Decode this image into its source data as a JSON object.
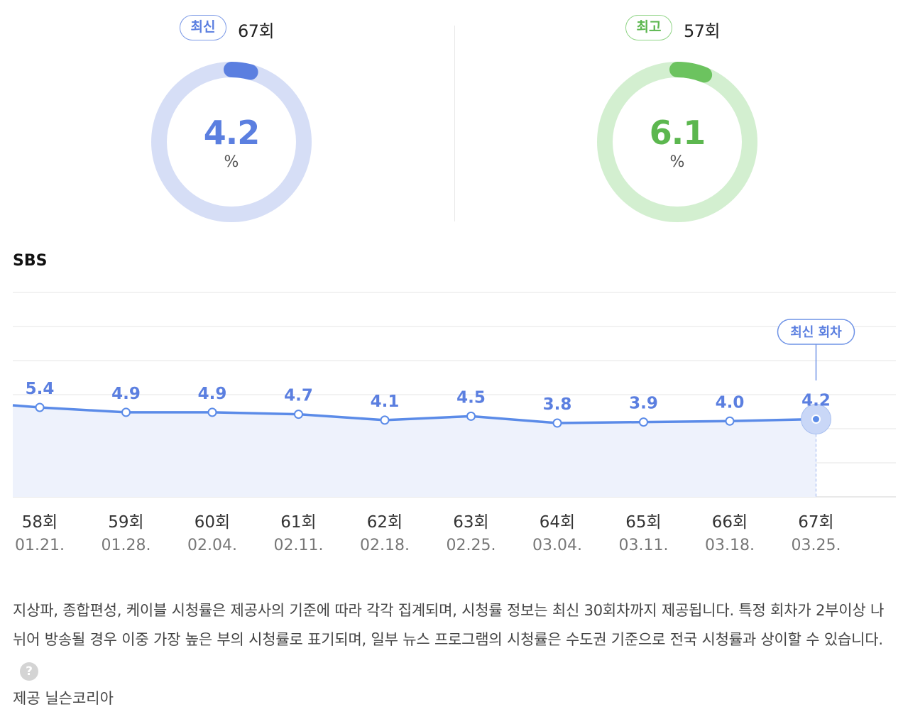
{
  "summary": {
    "latest": {
      "badge": "최신",
      "episode": "67회",
      "value": "4.2",
      "unit": "%",
      "percent": 4.2,
      "color": "#5b7fe0",
      "track": "#d6def6"
    },
    "best": {
      "badge": "최고",
      "episode": "57회",
      "value": "6.1",
      "unit": "%",
      "percent": 6.1,
      "color": "#6cc35f",
      "track": "#d3efd0"
    }
  },
  "channel": "SBS",
  "chart_data": {
    "type": "area",
    "series": [
      {
        "values": [
          5.4,
          4.9,
          4.9,
          4.7,
          4.1,
          4.5,
          3.8,
          3.9,
          4.0,
          4.2
        ]
      }
    ],
    "categories": [
      "58회",
      "59회",
      "60회",
      "61회",
      "62회",
      "63회",
      "64회",
      "65회",
      "66회",
      "67회"
    ],
    "dates": [
      "01.21.",
      "01.28.",
      "02.04.",
      "02.11.",
      "02.18.",
      "02.25.",
      "03.04.",
      "03.11.",
      "03.18.",
      "03.25."
    ],
    "data_labels": [
      "5.4",
      "4.9",
      "4.9",
      "4.7",
      "4.1",
      "4.5",
      "3.8",
      "3.9",
      "4.0",
      "4.2"
    ],
    "highlight_label": "최신 회차",
    "line_color": "#5b8be8",
    "fill_color": "#eef2fc",
    "grid": true
  },
  "note": {
    "text": "지상파, 종합편성, 케이블 시청률은 제공사의 기준에 따라 각각 집계되며, 시청률 정보는 최신 30회차까지 제공됩니다. 특정 회차가 2부이상 나뉘어 방송될 경우 이중 가장 높은 부의 시청률로 표기되며, 일부 뉴스 프로그램의 시청률은 수도권 기준으로 전국 시청률과 상이할 수 있습니다.",
    "help_icon": "question-icon",
    "help_glyph": "?"
  },
  "source": "제공 닐슨코리아"
}
